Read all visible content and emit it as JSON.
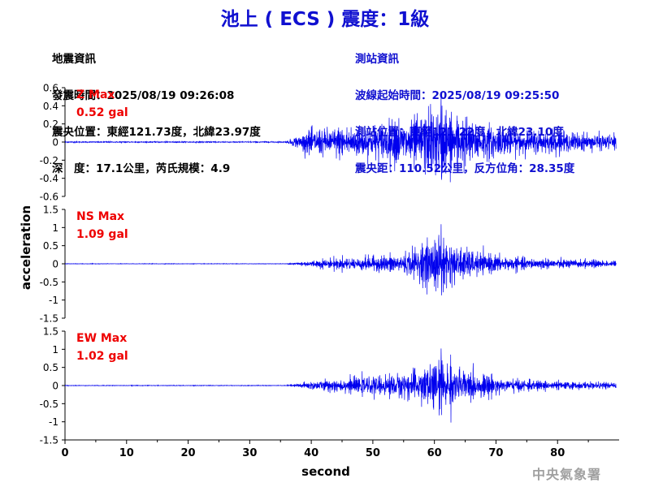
{
  "title": "池上 ( ECS ) 震度：1級",
  "quake_info": {
    "heading": "地震資訊",
    "origin_time": "發震時間：2025/08/19 09:26:08",
    "epicenter": "震央位置：東經121.73度，北緯23.97度",
    "depth_magnitude": "深　度：17.1公里，芮氏規模：4.9"
  },
  "station_info": {
    "heading": "測站資訊",
    "wave_start": "波線起始時間：2025/08/19 09:25:50",
    "location": "測站位置：東經121.22度，北緯23.10度",
    "distance": "震央距：110.52公里，反方位角：28.35度"
  },
  "credit": "中央氣象署",
  "colors": {
    "trace": "#0000ee",
    "label": "#ee0000",
    "title": "#1010d0",
    "axis": "#000000"
  },
  "chart_data": {
    "type": "line",
    "xlabel": "second",
    "ylabel": "acceleration",
    "xlim": [
      0,
      90
    ],
    "xticks": [
      "0",
      "10",
      "20",
      "30",
      "40",
      "50",
      "60",
      "70",
      "80"
    ],
    "grid": false,
    "panels": [
      {
        "component": "Z",
        "label": "Z Max",
        "max_label": "0.52 gal",
        "max": 0.52,
        "ylim": [
          -0.6,
          0.6
        ],
        "yticks": [
          "0.6",
          "0.4",
          "0.2",
          "0",
          "-0.2",
          "-0.4",
          "-0.6"
        ],
        "envelope": [
          [
            0,
            0.012
          ],
          [
            36,
            0.012
          ],
          [
            37,
            0.06
          ],
          [
            40,
            0.16
          ],
          [
            45,
            0.2
          ],
          [
            50,
            0.22
          ],
          [
            55,
            0.28
          ],
          [
            58,
            0.35
          ],
          [
            61,
            0.48
          ],
          [
            64,
            0.36
          ],
          [
            67,
            0.24
          ],
          [
            72,
            0.17
          ],
          [
            80,
            0.13
          ],
          [
            89.5,
            0.1
          ]
        ]
      },
      {
        "component": "NS",
        "label": "NS Max",
        "max_label": "1.09 gal",
        "max": 1.09,
        "ylim": [
          -1.5,
          1.5
        ],
        "yticks": [
          "1.5",
          "1",
          "0.5",
          "0",
          "-0.5",
          "-1",
          "-1.5"
        ],
        "envelope": [
          [
            0,
            0.012
          ],
          [
            36,
            0.012
          ],
          [
            38,
            0.06
          ],
          [
            42,
            0.15
          ],
          [
            48,
            0.22
          ],
          [
            54,
            0.3
          ],
          [
            58,
            0.6
          ],
          [
            61,
            0.98
          ],
          [
            64,
            0.55
          ],
          [
            68,
            0.32
          ],
          [
            72,
            0.22
          ],
          [
            80,
            0.15
          ],
          [
            89.5,
            0.1
          ]
        ]
      },
      {
        "component": "EW",
        "label": "EW Max",
        "max_label": "1.02 gal",
        "max": 1.02,
        "ylim": [
          -1.5,
          1.5
        ],
        "yticks": [
          "1.5",
          "1",
          "0.5",
          "0",
          "-0.5",
          "-1",
          "-1.5"
        ],
        "envelope": [
          [
            0,
            0.015
          ],
          [
            36,
            0.015
          ],
          [
            38,
            0.08
          ],
          [
            42,
            0.18
          ],
          [
            48,
            0.25
          ],
          [
            55,
            0.42
          ],
          [
            58,
            0.62
          ],
          [
            61,
            0.9
          ],
          [
            64,
            0.6
          ],
          [
            68,
            0.35
          ],
          [
            72,
            0.22
          ],
          [
            80,
            0.13
          ],
          [
            89.5,
            0.1
          ]
        ]
      }
    ]
  }
}
